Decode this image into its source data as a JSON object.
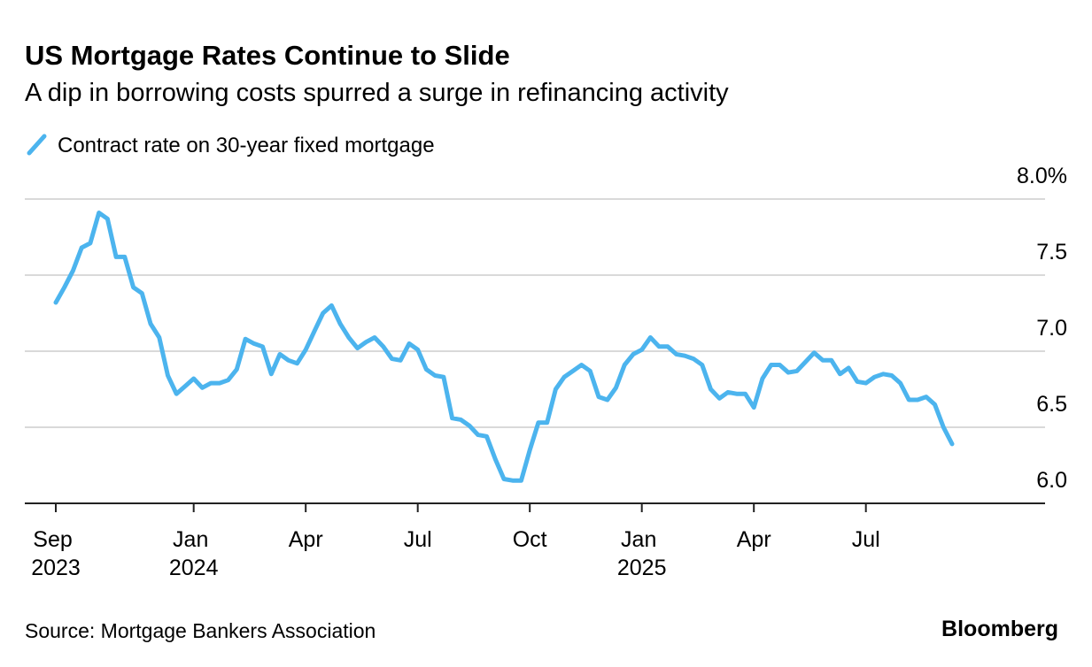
{
  "chart_data": {
    "type": "line",
    "title": "US Mortgage Rates Continue to Slide",
    "subtitle": "A dip in borrowing costs spurred a surge in refinancing activity",
    "categories": [
      "Sep 2023",
      null,
      null,
      null,
      null,
      null,
      null,
      null,
      null,
      null,
      null,
      null,
      null,
      null,
      null,
      null,
      "Jan 2024",
      null,
      null,
      null,
      null,
      null,
      null,
      null,
      null,
      null,
      null,
      null,
      null,
      "Apr",
      null,
      null,
      null,
      null,
      null,
      null,
      null,
      null,
      null,
      null,
      null,
      null,
      "Jul",
      null,
      null,
      null,
      null,
      null,
      null,
      null,
      null,
      null,
      null,
      null,
      null,
      "Oct",
      null,
      null,
      null,
      null,
      null,
      null,
      null,
      null,
      null,
      null,
      null,
      null,
      "Jan 2025",
      null,
      null,
      null,
      null,
      null,
      null,
      null,
      null,
      null,
      null,
      null,
      null,
      "Apr",
      null,
      null,
      null,
      null,
      null,
      null,
      null,
      null,
      null,
      null,
      null,
      null,
      "Jul",
      null,
      null,
      null,
      null,
      null,
      null,
      null,
      null,
      null,
      null
    ],
    "series": [
      {
        "name": "Contract rate on 30-year fixed mortgage",
        "color": "#4cb4ee",
        "values": [
          7.32,
          7.42,
          7.53,
          7.68,
          7.71,
          7.91,
          7.87,
          7.62,
          7.62,
          7.42,
          7.38,
          7.18,
          7.09,
          6.84,
          6.72,
          6.77,
          6.82,
          6.76,
          6.79,
          6.79,
          6.81,
          6.88,
          7.08,
          7.05,
          7.03,
          6.85,
          6.98,
          6.94,
          6.92,
          7.01,
          7.13,
          7.25,
          7.3,
          7.18,
          7.09,
          7.02,
          7.06,
          7.09,
          7.03,
          6.95,
          6.94,
          7.05,
          7.01,
          6.88,
          6.84,
          6.83,
          6.56,
          6.55,
          6.51,
          6.45,
          6.44,
          6.29,
          6.16,
          6.15,
          6.15,
          6.35,
          6.53,
          6.53,
          6.75,
          6.83,
          6.87,
          6.91,
          6.87,
          6.7,
          6.68,
          6.76,
          6.91,
          6.98,
          7.01,
          7.09,
          7.03,
          7.03,
          6.98,
          6.97,
          6.95,
          6.91,
          6.75,
          6.69,
          6.73,
          6.72,
          6.72,
          6.63,
          6.82,
          6.91,
          6.91,
          6.86,
          6.87,
          6.93,
          6.99,
          6.94,
          6.94,
          6.85,
          6.89,
          6.8,
          6.79,
          6.83,
          6.85,
          6.84,
          6.79,
          6.68,
          6.68,
          6.7,
          6.65,
          6.5,
          6.39
        ]
      }
    ],
    "ylim": [
      6,
      8
    ],
    "yticks": [
      {
        "value": 6,
        "label": "6.0"
      },
      6.5,
      {
        "value": 7,
        "label": "7.0"
      },
      7.5,
      {
        "value": 8,
        "label": "8.0%"
      }
    ],
    "grid": true,
    "source": "Source: Mortgage Bankers Association",
    "brand": "Bloomberg"
  }
}
